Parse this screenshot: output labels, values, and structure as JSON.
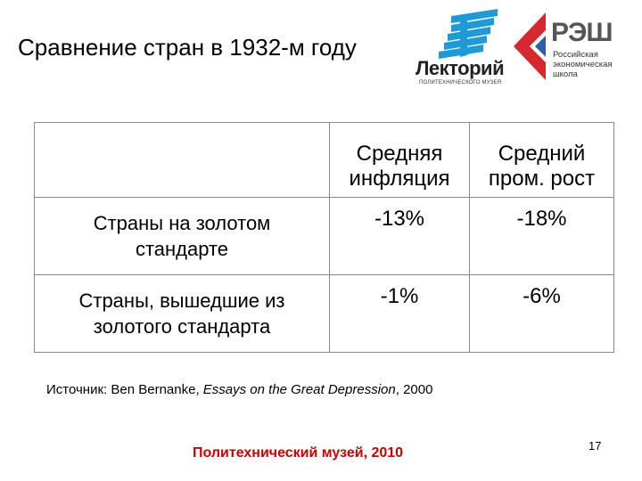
{
  "slide": {
    "title": "Сравнение стран в 1932-м году"
  },
  "logos": {
    "lectorium": {
      "name": "Лекторий",
      "subtitle": "ПОЛИТЕХНИЧЕСКОГО МУЗЕЯ",
      "color": "#1e9ad6"
    },
    "res": {
      "name": "РЭШ",
      "subtitle_lines": [
        "Российская",
        "экономическая",
        "школа"
      ],
      "red": "#d7282f",
      "blue": "#2b5fa6"
    }
  },
  "table": {
    "headers": [
      "",
      "Средняя инфляция",
      "Средний пром. рост"
    ],
    "header_lines": [
      [],
      [
        "Средняя",
        "инфляция"
      ],
      [
        "Средний",
        "пром. рост"
      ]
    ],
    "rows": [
      {
        "label_lines": [
          "Страны на золотом",
          "стандарте"
        ],
        "inflation": "-13%",
        "growth": "-18%"
      },
      {
        "label_lines": [
          "Страны, вышедшие из",
          "золотого стандарта"
        ],
        "inflation": "-1%",
        "growth": "-6%"
      }
    ]
  },
  "source": {
    "prefix": "Источник: Ben Bernanke, ",
    "book": "Essays on the Great Depression",
    "suffix": ", 2000"
  },
  "footer": {
    "text": "Политехнический музей, 2010",
    "color": "#cc0000"
  },
  "page_number": "17"
}
